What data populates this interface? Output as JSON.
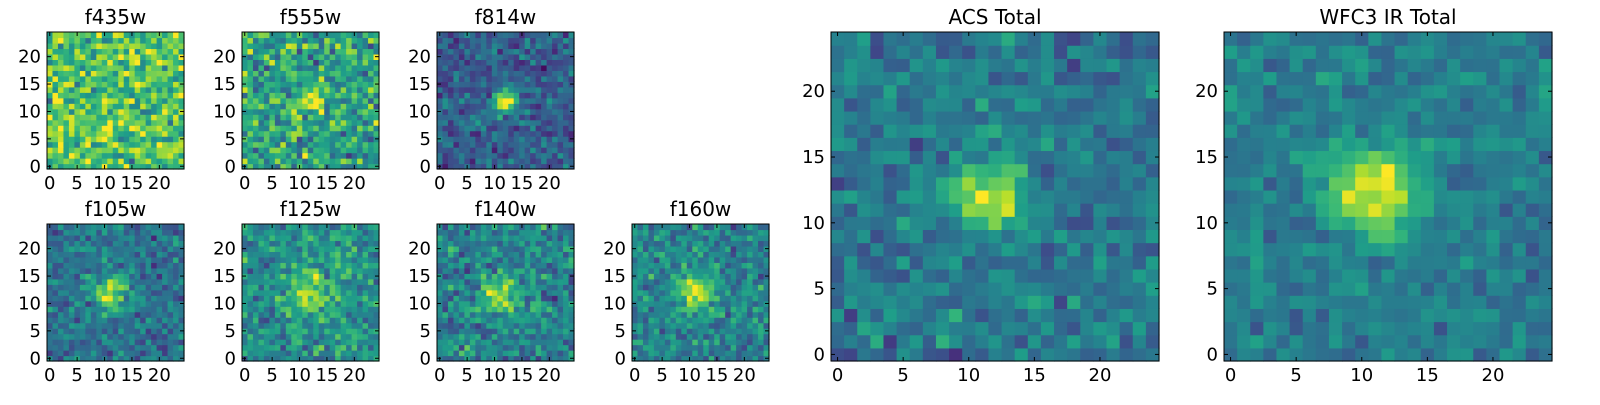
{
  "colormap": "viridis",
  "chart_data": [
    {
      "type": "heatmap",
      "title": "f435w",
      "xlim": [
        0,
        24
      ],
      "ylim": [
        0,
        24
      ],
      "xticks": [
        0,
        5,
        10,
        15,
        20
      ],
      "yticks": [
        0,
        5,
        10,
        15,
        20
      ],
      "source": {
        "center": [
          12,
          12
        ],
        "sigma": 2.0,
        "peak": 0.0,
        "background": 0.72,
        "noise": 0.16,
        "seed": 11
      }
    },
    {
      "type": "heatmap",
      "title": "f555w",
      "xlim": [
        0,
        24
      ],
      "ylim": [
        0,
        24
      ],
      "xticks": [
        0,
        5,
        10,
        15,
        20
      ],
      "yticks": [
        0,
        5,
        10,
        15,
        20
      ],
      "source": {
        "center": [
          12,
          12
        ],
        "sigma": 1.6,
        "peak": 0.35,
        "background": 0.58,
        "noise": 0.16,
        "seed": 23
      }
    },
    {
      "type": "heatmap",
      "title": "f814w",
      "xlim": [
        0,
        24
      ],
      "ylim": [
        0,
        24
      ],
      "xticks": [
        0,
        5,
        10,
        15,
        20
      ],
      "yticks": [
        0,
        5,
        10,
        15,
        20
      ],
      "source": {
        "center": [
          12,
          12
        ],
        "sigma": 1.6,
        "peak": 0.62,
        "background": 0.3,
        "noise": 0.1,
        "seed": 37
      }
    },
    {
      "type": "heatmap",
      "title": "f105w",
      "xlim": [
        0,
        24
      ],
      "ylim": [
        0,
        24
      ],
      "xticks": [
        0,
        5,
        10,
        15,
        20
      ],
      "yticks": [
        0,
        5,
        10,
        15,
        20
      ],
      "source": {
        "center": [
          11,
          12
        ],
        "sigma": 2.1,
        "peak": 0.55,
        "background": 0.38,
        "noise": 0.1,
        "seed": 41
      }
    },
    {
      "type": "heatmap",
      "title": "f125w",
      "xlim": [
        0,
        24
      ],
      "ylim": [
        0,
        24
      ],
      "xticks": [
        0,
        5,
        10,
        15,
        20
      ],
      "yticks": [
        0,
        5,
        10,
        15,
        20
      ],
      "source": {
        "center": [
          12,
          12
        ],
        "sigma": 2.6,
        "peak": 0.4,
        "background": 0.5,
        "noise": 0.12,
        "seed": 53
      }
    },
    {
      "type": "heatmap",
      "title": "f140w",
      "xlim": [
        0,
        24
      ],
      "ylim": [
        0,
        24
      ],
      "xticks": [
        0,
        5,
        10,
        15,
        20
      ],
      "yticks": [
        0,
        5,
        10,
        15,
        20
      ],
      "source": {
        "center": [
          11,
          12
        ],
        "sigma": 2.4,
        "peak": 0.45,
        "background": 0.45,
        "noise": 0.12,
        "seed": 67
      }
    },
    {
      "type": "heatmap",
      "title": "f160w",
      "xlim": [
        0,
        24
      ],
      "ylim": [
        0,
        24
      ],
      "xticks": [
        0,
        5,
        10,
        15,
        20
      ],
      "yticks": [
        0,
        5,
        10,
        15,
        20
      ],
      "source": {
        "center": [
          11,
          12
        ],
        "sigma": 2.2,
        "peak": 0.5,
        "background": 0.45,
        "noise": 0.11,
        "seed": 79
      }
    },
    {
      "type": "heatmap",
      "title": "ACS Total",
      "xlim": [
        0,
        24
      ],
      "ylim": [
        0,
        24
      ],
      "xticks": [
        0,
        5,
        10,
        15,
        20
      ],
      "yticks": [
        0,
        5,
        10,
        15,
        20
      ],
      "source": {
        "center": [
          11.5,
          12
        ],
        "sigma": 1.7,
        "peak": 0.6,
        "background": 0.4,
        "noise": 0.09,
        "seed": 97
      }
    },
    {
      "type": "heatmap",
      "title": "WFC3 IR Total",
      "xlim": [
        0,
        24
      ],
      "ylim": [
        0,
        24
      ],
      "xticks": [
        0,
        5,
        10,
        15,
        20
      ],
      "yticks": [
        0,
        5,
        10,
        15,
        20
      ],
      "source": {
        "center": [
          11,
          12.5
        ],
        "sigma": 2.4,
        "peak": 0.55,
        "background": 0.42,
        "noise": 0.07,
        "seed": 131
      }
    }
  ]
}
